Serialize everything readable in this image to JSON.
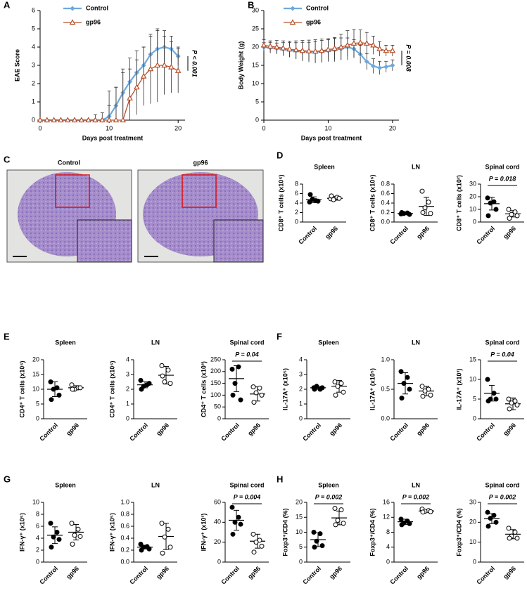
{
  "chart_data": [
    {
      "type": "line",
      "panel": "A",
      "ylabel": "EAE Score",
      "xlabel": "Days post treatment",
      "annotation": "P < 0.001",
      "x": [
        0,
        1,
        2,
        3,
        4,
        5,
        6,
        7,
        8,
        9,
        10,
        11,
        12,
        13,
        14,
        15,
        16,
        17,
        18,
        19,
        20
      ],
      "xlim": [
        0,
        21
      ],
      "xticks": [
        0,
        10,
        20
      ],
      "ylim": [
        0,
        6
      ],
      "yticks": [
        0,
        1,
        2,
        3,
        4,
        5,
        6
      ],
      "series": [
        {
          "name": "Control",
          "color": "#6fa8dc",
          "values": [
            0,
            0,
            0,
            0,
            0,
            0,
            0,
            0,
            0,
            0,
            0.2,
            0.8,
            1.5,
            2.1,
            2.6,
            3.0,
            3.6,
            3.9,
            4.0,
            3.9,
            3.5
          ],
          "errors": [
            0,
            0,
            0,
            0,
            0,
            0,
            0,
            0,
            0.3,
            0.4,
            0.6,
            1.0,
            1.3,
            1.3,
            1.2,
            1.0,
            1.0,
            1.0,
            0.9,
            0.7,
            0.5
          ]
        },
        {
          "name": "gp96",
          "color": "#b5502b",
          "values": [
            0,
            0,
            0,
            0,
            0,
            0,
            0,
            0,
            0,
            0,
            0,
            0,
            0,
            1.2,
            1.8,
            2.4,
            2.8,
            3.0,
            3.0,
            2.9,
            2.7
          ],
          "errors": [
            0,
            0,
            0,
            0,
            0,
            0,
            0,
            0,
            0,
            0,
            1.6,
            1.8,
            2.6,
            1.6,
            1.5,
            1.6,
            1.9,
            2.0,
            1.6,
            1.4,
            1.2
          ]
        }
      ]
    },
    {
      "type": "line",
      "panel": "B",
      "ylabel": "Body Weight (g)",
      "xlabel": "Days post treatment",
      "annotation": "P = 0.008",
      "x": [
        0,
        1,
        2,
        3,
        4,
        5,
        6,
        7,
        8,
        9,
        10,
        11,
        12,
        13,
        14,
        15,
        16,
        17,
        18,
        19,
        20
      ],
      "xlim": [
        0,
        21
      ],
      "xticks": [
        0,
        10,
        20
      ],
      "ylim": [
        0,
        30
      ],
      "yticks": [
        0,
        5,
        10,
        15,
        20,
        25,
        30
      ],
      "series": [
        {
          "name": "Control",
          "color": "#6fa8dc",
          "values": [
            20,
            19.8,
            19.6,
            19.4,
            19.2,
            19,
            18.8,
            18.8,
            18.7,
            18.8,
            19,
            19.2,
            19.5,
            20,
            19.5,
            18,
            16,
            14.8,
            14.3,
            14.6,
            15
          ],
          "errors": [
            1.2,
            1.5,
            1.5,
            1.8,
            2,
            2.2,
            2.5,
            2.5,
            2.8,
            3,
            3,
            3.2,
            3,
            2.5,
            2.5,
            2.5,
            2.2,
            2,
            1.8,
            1.5,
            1.5
          ]
        },
        {
          "name": "gp96",
          "color": "#b5502b",
          "values": [
            20.5,
            20.2,
            20,
            19.7,
            19.4,
            19.2,
            19,
            18.9,
            18.8,
            19,
            19.3,
            19.6,
            20,
            20.5,
            21,
            21.2,
            21,
            20.5,
            19.5,
            19,
            19
          ],
          "errors": [
            1.5,
            1.5,
            1.8,
            2,
            2.2,
            2.5,
            2.8,
            3,
            3.2,
            3.2,
            3,
            3,
            3.5,
            4,
            3.8,
            3.5,
            3,
            2.5,
            2,
            1.5,
            1.5
          ]
        }
      ]
    },
    {
      "type": "dot",
      "panel": "D",
      "title": "Spleen",
      "ylabel": "CD8⁺ T cells (x10⁶)",
      "categories": [
        "Control",
        "gp96"
      ],
      "values": [
        [
          4.2,
          4.5,
          4.8,
          4.4,
          5.8
        ],
        [
          4.9,
          5.2,
          4.7,
          5.0,
          5.5
        ]
      ],
      "means": [
        4.7,
        5.0
      ],
      "sds": [
        0.6,
        0.4
      ],
      "ylim": [
        0,
        8
      ],
      "yticks": [
        0,
        2,
        4,
        6,
        8
      ]
    },
    {
      "type": "dot",
      "title": "LN",
      "ylabel": "CD8⁺ T cells (x10⁶)",
      "categories": [
        "Control",
        "gp96"
      ],
      "values": [
        [
          0.17,
          0.19,
          0.18,
          0.16,
          0.2
        ],
        [
          0.65,
          0.42,
          0.3,
          0.18,
          0.2
        ]
      ],
      "means": [
        0.18,
        0.33
      ],
      "sds": [
        0.02,
        0.19
      ],
      "ylim": [
        0,
        0.8
      ],
      "yticks": [
        {
          "value": 0,
          "label": "0.0"
        },
        0.2,
        0.4,
        0.6,
        0.8
      ]
    },
    {
      "type": "dot",
      "title": "Spinal cord",
      "ylabel": "CD8⁺ T cells (x10²)",
      "annotation": "P = 0.018",
      "categories": [
        "Control",
        "gp96"
      ],
      "values": [
        [
          19,
          16,
          15,
          10,
          5
        ],
        [
          10,
          8,
          6,
          5,
          3
        ]
      ],
      "means": [
        14.5,
        6.5
      ],
      "sds": [
        5,
        2.5
      ],
      "ylim": [
        0,
        30
      ],
      "yticks": [
        0,
        10,
        20,
        30
      ]
    },
    {
      "type": "dot",
      "panel": "E",
      "title": "Spleen",
      "ylabel": "CD4⁺ T cells (x10⁶)",
      "categories": [
        "Control",
        "gp96"
      ],
      "values": [
        [
          12.5,
          10.5,
          10,
          8,
          6.5
        ],
        [
          11.5,
          10.5,
          10,
          10.5,
          10
        ]
      ],
      "means": [
        10,
        10.5
      ],
      "sds": [
        2.5,
        0.7
      ],
      "ylim": [
        0,
        20
      ],
      "yticks": [
        0,
        5,
        10,
        15,
        20
      ]
    },
    {
      "type": "dot",
      "title": "LN",
      "ylabel": "CD4⁺ T cells (x10⁶)",
      "categories": [
        "Control",
        "gp96"
      ],
      "values": [
        [
          2.6,
          2.3,
          2.2,
          2.4,
          2.0
        ],
        [
          3.6,
          3.3,
          2.5,
          2.4,
          2.9
        ]
      ],
      "means": [
        2.3,
        2.95
      ],
      "sds": [
        0.2,
        0.6
      ],
      "ylim": [
        0,
        4
      ],
      "yticks": [
        0,
        1,
        2,
        3,
        4
      ]
    },
    {
      "type": "dot",
      "title": "Spinal cord",
      "ylabel": "CD4⁺ T cells (x10³)",
      "annotation": "P = 0.04",
      "categories": [
        "Control",
        "gp96"
      ],
      "values": [
        [
          210,
          220,
          150,
          80,
          100
        ],
        [
          135,
          130,
          110,
          100,
          70
        ]
      ],
      "means": [
        170,
        105
      ],
      "sds": [
        55,
        30
      ],
      "ylim": [
        0,
        250
      ],
      "yticks": [
        0,
        50,
        100,
        150,
        200,
        250
      ]
    },
    {
      "type": "dot",
      "panel": "F",
      "title": "Spleen",
      "ylabel": "IL-17A⁺ (x10⁵)",
      "categories": [
        "Control",
        "gp96"
      ],
      "values": [
        [
          2.1,
          2.0,
          2.2,
          2.1,
          2.0
        ],
        [
          2.5,
          2.4,
          2.2,
          1.8,
          1.6
        ]
      ],
      "means": [
        2.1,
        2.2
      ],
      "sds": [
        0.1,
        0.4
      ],
      "ylim": [
        0,
        4
      ],
      "yticks": [
        0,
        1,
        2,
        3,
        4
      ]
    },
    {
      "type": "dot",
      "title": "LN",
      "ylabel": "IL-17A⁺ (x10⁵)",
      "categories": [
        "Control",
        "gp96"
      ],
      "values": [
        [
          0.8,
          0.7,
          0.6,
          0.5,
          0.35
        ],
        [
          0.55,
          0.5,
          0.47,
          0.4,
          0.38
        ]
      ],
      "means": [
        0.6,
        0.47
      ],
      "sds": [
        0.18,
        0.08
      ],
      "ylim": [
        0,
        1
      ],
      "yticks": [
        {
          "value": 0,
          "label": "0.0"
        },
        0.5,
        {
          "value": 1,
          "label": "1.0"
        }
      ]
    },
    {
      "type": "dot",
      "title": "Spinal cord",
      "ylabel": "IL-17A⁺ (x10³)",
      "annotation": "P = 0.04",
      "categories": [
        "Control",
        "gp96"
      ],
      "values": [
        [
          10,
          6.5,
          5,
          5,
          4.5
        ],
        [
          5,
          4.5,
          4,
          3.5,
          2.5
        ]
      ],
      "means": [
        6.5,
        3.8
      ],
      "sds": [
        2,
        1.5
      ],
      "ylim": [
        0,
        15
      ],
      "yticks": [
        0,
        5,
        10,
        15
      ]
    },
    {
      "type": "dot",
      "panel": "G",
      "title": "Spleen",
      "ylabel": "IFN-γ⁺ (x10⁵)",
      "categories": [
        "Control",
        "gp96"
      ],
      "values": [
        [
          6.5,
          5,
          4.2,
          3.8,
          2.5
        ],
        [
          6.5,
          5.5,
          4.5,
          4.3,
          3
        ]
      ],
      "means": [
        4.5,
        5
      ],
      "sds": [
        1.4,
        1.3
      ],
      "ylim": [
        0,
        10
      ],
      "yticks": [
        0,
        2,
        4,
        6,
        8,
        10
      ]
    },
    {
      "type": "dot",
      "title": "LN",
      "ylabel": "IFN-γ⁺ (x10⁵)",
      "categories": [
        "Control",
        "gp96"
      ],
      "values": [
        [
          0.3,
          0.26,
          0.25,
          0.22,
          0.2
        ],
        [
          0.65,
          0.55,
          0.42,
          0.25,
          0.15
        ]
      ],
      "means": [
        0.25,
        0.43
      ],
      "sds": [
        0.03,
        0.22
      ],
      "ylim": [
        0,
        1
      ],
      "yticks": [
        {
          "value": 0,
          "label": "0.0"
        },
        0.2,
        0.4,
        0.6,
        0.8,
        {
          "value": 1,
          "label": "1.0"
        }
      ]
    },
    {
      "type": "dot",
      "title": "Spinal cord",
      "ylabel": "IFN-γ⁺ (x10³)",
      "annotation": "P = 0.004",
      "categories": [
        "Control",
        "gp96"
      ],
      "values": [
        [
          55,
          45,
          40,
          38,
          28
        ],
        [
          28,
          22,
          20,
          16,
          10
        ]
      ],
      "means": [
        42,
        21
      ],
      "sds": [
        10,
        7
      ],
      "ylim": [
        0,
        60
      ],
      "yticks": [
        0,
        20,
        40,
        60
      ]
    },
    {
      "type": "dot",
      "panel": "H",
      "title": "Spleen",
      "ylabel": "Foxp3⁺/CD4 (%)",
      "annotation": "P = 0.002",
      "categories": [
        "Control",
        "gp96"
      ],
      "values": [
        [
          10,
          9.5,
          7,
          5.5,
          5
        ],
        [
          18,
          17.5,
          14,
          13,
          12.5
        ]
      ],
      "means": [
        7.5,
        14.8
      ],
      "sds": [
        2.3,
        2.3
      ],
      "ylim": [
        0,
        20
      ],
      "yticks": [
        0,
        5,
        10,
        15,
        20
      ]
    },
    {
      "type": "dot",
      "title": "LN",
      "ylabel": "Foxp3⁺/CD4 (%)",
      "annotation": "P = 0.002",
      "categories": [
        "Control",
        "gp96"
      ],
      "values": [
        [
          11.5,
          11,
          10.5,
          10.3,
          10
        ],
        [
          14.2,
          13.8,
          13.6,
          13.5,
          13.4
        ]
      ],
      "means": [
        10.8,
        13.7
      ],
      "sds": [
        0.7,
        0.3
      ],
      "ylim": [
        0,
        16
      ],
      "yticks": [
        0,
        4,
        8,
        12,
        16
      ]
    },
    {
      "type": "dot",
      "title": "Spinal cord",
      "ylabel": "Foxp3⁺/CD4 (%)",
      "annotation": "P = 0.002",
      "categories": [
        "Control",
        "gp96"
      ],
      "values": [
        [
          25,
          23.5,
          22,
          20,
          18
        ],
        [
          17,
          15,
          13,
          12,
          12
        ]
      ],
      "means": [
        21.8,
        14
      ],
      "sds": [
        2.5,
        2.3
      ],
      "ylim": [
        0,
        30
      ],
      "yticks": [
        0,
        10,
        20,
        30
      ]
    }
  ],
  "histology": {
    "panel": "C",
    "titles": [
      "Control",
      "gp96"
    ]
  }
}
